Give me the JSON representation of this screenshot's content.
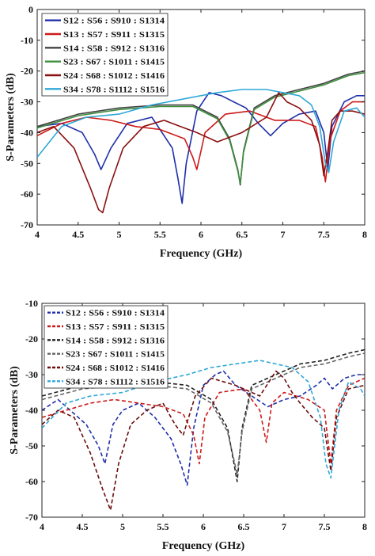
{
  "chart_data": [
    {
      "type": "line",
      "line_style": "solid",
      "xlabel": "Frequency (GHz)",
      "ylabel": "S-Parameters (dB)",
      "xlim": [
        4,
        8
      ],
      "ylim": [
        -70,
        0
      ],
      "xticks": [
        "4",
        "4.5",
        "5",
        "5.5",
        "6",
        "6.5",
        "7",
        "7.5",
        "8"
      ],
      "yticks": [
        "0",
        "-10",
        "-20",
        "-30",
        "-40",
        "-50",
        "-60",
        "-70"
      ],
      "grid": false,
      "legend_position": "top-left",
      "series": [
        {
          "name": "S12 : S56 : S910 : S1314",
          "color": "#1f2fa8",
          "x": [
            4,
            4.3,
            4.55,
            4.7,
            4.78,
            4.9,
            5.1,
            5.4,
            5.65,
            5.72,
            5.77,
            5.82,
            5.95,
            6.1,
            6.25,
            6.4,
            6.55,
            6.7,
            6.85,
            7.0,
            7.2,
            7.4,
            7.5,
            7.55,
            7.6,
            7.75,
            7.9,
            8
          ],
          "y": [
            -38,
            -37,
            -40,
            -47,
            -52,
            -45,
            -37,
            -35,
            -45,
            -55,
            -63,
            -50,
            -33,
            -27,
            -28,
            -30,
            -32,
            -37,
            -41,
            -37,
            -34,
            -33,
            -40,
            -52,
            -38,
            -30,
            -28,
            -28
          ]
        },
        {
          "name": "S13 : S57 : S911 : S1315",
          "color": "#cc1a1a",
          "x": [
            4,
            4.3,
            4.6,
            4.9,
            5.2,
            5.5,
            5.8,
            5.9,
            5.95,
            6.05,
            6.3,
            6.6,
            6.9,
            7.2,
            7.4,
            7.48,
            7.52,
            7.58,
            7.7,
            7.85,
            8
          ],
          "y": [
            -41,
            -37,
            -35,
            -36,
            -38,
            -39,
            -42,
            -48,
            -52,
            -40,
            -34,
            -33,
            -36,
            -36,
            -38,
            -48,
            -56,
            -42,
            -33,
            -30,
            -30
          ]
        },
        {
          "name": "S14 : S58 : S912 : S1316",
          "color": "#444444",
          "x": [
            4,
            4.5,
            5.0,
            5.5,
            5.9,
            6.2,
            6.35,
            6.45,
            6.48,
            6.52,
            6.65,
            6.9,
            7.2,
            7.5,
            7.8,
            8
          ],
          "y": [
            -38,
            -34,
            -32,
            -31,
            -31,
            -35,
            -42,
            -52,
            -57,
            -46,
            -32,
            -28,
            -26,
            -24,
            -21,
            -20
          ]
        },
        {
          "name": "S23 : S67 : S1011 : S1415",
          "color": "#3f8f3f",
          "x": [
            4,
            4.5,
            5.0,
            5.5,
            5.9,
            6.2,
            6.35,
            6.45,
            6.48,
            6.52,
            6.65,
            6.9,
            7.2,
            7.5,
            7.8,
            8
          ],
          "y": [
            -38.5,
            -34.5,
            -32.5,
            -31.5,
            -31.5,
            -35.5,
            -42.5,
            -52.5,
            -56.5,
            -46.5,
            -32.5,
            -28.5,
            -26.5,
            -24.5,
            -21.5,
            -20.5
          ]
        },
        {
          "name": "S24 : S68 : S1012 : S1416",
          "color": "#8b1010",
          "x": [
            4,
            4.2,
            4.45,
            4.65,
            4.75,
            4.8,
            4.88,
            5.05,
            5.3,
            5.55,
            5.75,
            5.95,
            6.2,
            6.5,
            6.8,
            6.95,
            7.05,
            7.2,
            7.35,
            7.45,
            7.5,
            7.55,
            7.6,
            7.7,
            7.85,
            8
          ],
          "y": [
            -40,
            -38,
            -45,
            -58,
            -65,
            -66,
            -58,
            -45,
            -38,
            -36,
            -38,
            -40,
            -43,
            -40,
            -35,
            -27,
            -30,
            -32,
            -36,
            -44,
            -54,
            -46,
            -36,
            -33,
            -33,
            -34
          ]
        },
        {
          "name": "S34 : S78 : S1112 : S1516",
          "color": "#2fa8d8",
          "x": [
            4,
            4.3,
            4.6,
            5.0,
            5.4,
            5.8,
            6.2,
            6.5,
            6.8,
            7.0,
            7.2,
            7.35,
            7.45,
            7.52,
            7.56,
            7.62,
            7.75,
            7.9,
            8
          ],
          "y": [
            -48,
            -38,
            -35,
            -34,
            -31,
            -29,
            -27,
            -26,
            -26,
            -27,
            -28,
            -31,
            -38,
            -50,
            -53,
            -43,
            -33,
            -32,
            -35
          ]
        }
      ]
    },
    {
      "type": "line",
      "line_style": "dashed",
      "xlabel": "Frequency (GHz)",
      "ylabel": "S-Parameters (dB)",
      "xlim": [
        4,
        8
      ],
      "ylim": [
        -70,
        -10
      ],
      "xticks": [
        "4",
        "4.5",
        "5",
        "5.5",
        "6",
        "6.5",
        "7",
        "7.5",
        "8"
      ],
      "yticks": [
        "-10",
        "-20",
        "-30",
        "-40",
        "-50",
        "-60",
        "-70"
      ],
      "grid": false,
      "legend_position": "top-left",
      "series": [
        {
          "name": "S12 : S56 : S910 : S1314",
          "color": "#1f2fa8",
          "x": [
            4,
            4.2,
            4.4,
            4.55,
            4.7,
            4.78,
            4.88,
            5.0,
            5.2,
            5.4,
            5.6,
            5.72,
            5.8,
            5.88,
            6.0,
            6.15,
            6.25,
            6.4,
            6.6,
            6.8,
            7.0,
            7.2,
            7.4,
            7.5,
            7.6,
            7.75,
            7.9,
            8
          ],
          "y": [
            -40,
            -37,
            -41,
            -44,
            -50,
            -55,
            -44,
            -40,
            -38,
            -42,
            -48,
            -55,
            -61,
            -45,
            -33,
            -30,
            -29,
            -33,
            -36,
            -39,
            -37,
            -36,
            -33,
            -31,
            -34,
            -31,
            -30,
            -30
          ]
        },
        {
          "name": "S13 : S57 : S911 : S1315",
          "color": "#cc1a1a",
          "x": [
            4,
            4.3,
            4.6,
            4.9,
            5.2,
            5.5,
            5.75,
            5.88,
            5.95,
            6.02,
            6.2,
            6.5,
            6.7,
            6.78,
            6.85,
            7.0,
            7.3,
            7.5,
            7.58,
            7.65,
            7.8,
            8
          ],
          "y": [
            -42,
            -40,
            -38,
            -37,
            -38,
            -39,
            -41,
            -47,
            -55,
            -42,
            -35,
            -34,
            -40,
            -49,
            -38,
            -35,
            -37,
            -40,
            -55,
            -40,
            -33,
            -31
          ]
        },
        {
          "name": "S14 : S58 : S912 : S1316",
          "color": "#222222",
          "x": [
            4,
            4.5,
            5.0,
            5.4,
            5.8,
            6.1,
            6.3,
            6.38,
            6.42,
            6.48,
            6.6,
            6.9,
            7.2,
            7.5,
            7.8,
            8
          ],
          "y": [
            -36,
            -33,
            -32,
            -32,
            -33,
            -37,
            -45,
            -55,
            -60,
            -45,
            -33,
            -30,
            -27,
            -26,
            -24,
            -23
          ]
        },
        {
          "name": "S23 : S67 : S1011 : S1415",
          "color": "#666666",
          "x": [
            4,
            4.5,
            5.0,
            5.4,
            5.8,
            6.1,
            6.3,
            6.38,
            6.42,
            6.48,
            6.6,
            6.9,
            7.2,
            7.5,
            7.8,
            8
          ],
          "y": [
            -37,
            -34,
            -33,
            -33,
            -34,
            -38,
            -46,
            -54,
            -58,
            -46,
            -34,
            -31,
            -28,
            -27,
            -25,
            -24
          ]
        },
        {
          "name": "S24 : S68 : S1012 : S1416",
          "color": "#6b0d0d",
          "x": [
            4,
            4.2,
            4.4,
            4.6,
            4.75,
            4.85,
            4.95,
            5.1,
            5.3,
            5.5,
            5.65,
            5.75,
            5.9,
            6.1,
            6.4,
            6.7,
            6.9,
            7.0,
            7.1,
            7.2,
            7.35,
            7.5,
            7.58,
            7.65,
            7.8,
            8
          ],
          "y": [
            -44,
            -40,
            -42,
            -52,
            -62,
            -68,
            -55,
            -44,
            -40,
            -38,
            -44,
            -47,
            -36,
            -31,
            -33,
            -36,
            -29,
            -31,
            -35,
            -38,
            -42,
            -45,
            -57,
            -42,
            -34,
            -33
          ]
        },
        {
          "name": "S34 : S78 : S1112 : S1516",
          "color": "#2fa8d8",
          "x": [
            4,
            4.3,
            4.6,
            5.0,
            5.4,
            5.8,
            6.1,
            6.4,
            6.7,
            6.9,
            7.1,
            7.3,
            7.45,
            7.52,
            7.58,
            7.68,
            7.8,
            7.95,
            8
          ],
          "y": [
            -45,
            -38,
            -36,
            -35,
            -32,
            -30,
            -28,
            -27,
            -26,
            -27,
            -28,
            -32,
            -42,
            -55,
            -59,
            -40,
            -32,
            -34,
            -36
          ]
        }
      ]
    }
  ]
}
